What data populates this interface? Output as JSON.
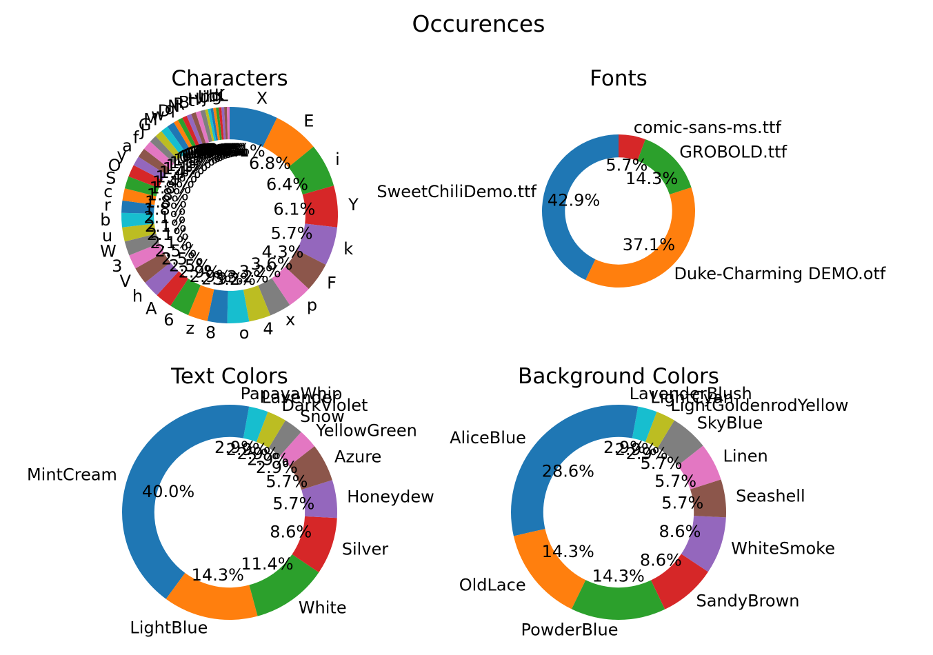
{
  "figure": {
    "title": "Occurences"
  },
  "chart_data": [
    {
      "type": "pie",
      "title": "Characters",
      "donut": true,
      "start_angle_deg": 90,
      "counterclock": false,
      "labels": [
        "X",
        "E",
        "i",
        "Y",
        "k",
        "F",
        "p",
        "x",
        "4",
        "o",
        "8",
        "z",
        "6",
        "A",
        "h",
        "V",
        "3",
        "W",
        "u",
        "b",
        "r",
        "c",
        "S",
        "O",
        "y",
        "a",
        "f",
        "J",
        "G",
        "M",
        "w",
        "D",
        "q",
        "N",
        "R",
        "B",
        "t",
        "H",
        "v",
        "j",
        "U",
        "l",
        "m",
        "d",
        "g",
        "K",
        "L"
      ],
      "values": [
        7.1,
        6.8,
        6.4,
        6.1,
        5.7,
        4.3,
        3.6,
        3.2,
        3.2,
        3.2,
        2.9,
        2.9,
        2.9,
        2.5,
        2.5,
        2.5,
        2.1,
        2.1,
        2.1,
        2.1,
        1.8,
        1.8,
        1.8,
        1.8,
        1.4,
        1.4,
        1.4,
        1.1,
        1.1,
        1.1,
        1.1,
        0.7,
        0.7,
        0.7,
        0.7,
        0.7,
        0.7,
        0.7,
        0.4,
        0.4,
        0.4,
        0.4,
        0.4,
        0.4,
        0.4,
        0.4,
        0.4
      ],
      "percent_labels": [
        "7.1%",
        "6.8%",
        "6.4%",
        "6.1%",
        "5.7%",
        "4.3%",
        "3.6%",
        "3.2%",
        "3.2%",
        "3.2%",
        "2.9%",
        "2.9%",
        "2.9%",
        "2.5%",
        "2.5%",
        "2.5%",
        "2.1%",
        "2.1%",
        "2.1%",
        "2.1%",
        "1.8%",
        "1.8%",
        "1.8%",
        "1.8%",
        "1.4%",
        "1.4%",
        "1.4%",
        "1.1%",
        "1.1%",
        "1.1%",
        "1.1%",
        "0.7%",
        "0.7%",
        "0.7%",
        "0.7%",
        "0.7%",
        "0.7%",
        "0.7%",
        "0.4%",
        "0.4%",
        "0.4%",
        "0.4%",
        "0.4%",
        "0.4%",
        "0.4%",
        "0.4%",
        "0.4%"
      ]
    },
    {
      "type": "pie",
      "title": "Fonts",
      "donut": true,
      "start_angle_deg": 90,
      "counterclock": true,
      "labels": [
        "SweetChiliDemo.ttf",
        "Duke-Charming DEMO.otf",
        "GROBOLD.ttf",
        "comic-sans-ms.ttf"
      ],
      "values": [
        42.9,
        37.1,
        14.3,
        5.7
      ],
      "percent_labels": [
        "42.9%",
        "37.1%",
        "14.3%",
        "5.7%"
      ]
    },
    {
      "type": "pie",
      "title": "Text Colors",
      "donut": true,
      "start_angle_deg": 90,
      "counterclock": true,
      "labels": [
        "MintCream",
        "LightBlue",
        "White",
        "Silver",
        "Honeydew",
        "Azure",
        "YellowGreen",
        "Snow",
        "DarkViolet",
        "Lavender",
        "PapayaWhip"
      ],
      "values": [
        40.0,
        14.3,
        11.4,
        8.6,
        5.7,
        5.7,
        2.9,
        2.9,
        2.9,
        2.9,
        2.9
      ],
      "percent_labels": [
        "40.0%",
        "14.3%",
        "11.4%",
        "8.6%",
        "5.7%",
        "5.7%",
        "2.9%",
        "2.9%",
        "2.9%",
        "2.9%",
        "2.9%"
      ]
    },
    {
      "type": "pie",
      "title": "Background Colors",
      "donut": true,
      "start_angle_deg": 90,
      "counterclock": true,
      "labels": [
        "AliceBlue",
        "OldLace",
        "PowderBlue",
        "SandyBrown",
        "WhiteSmoke",
        "Seashell",
        "Linen",
        "SkyBlue",
        "LightGoldenrodYellow",
        "LightCyan",
        "LavenderBlush"
      ],
      "values": [
        28.6,
        14.3,
        14.3,
        8.6,
        8.6,
        5.7,
        5.7,
        5.7,
        2.9,
        2.9,
        2.9
      ],
      "percent_labels": [
        "28.6%",
        "14.3%",
        "14.3%",
        "8.6%",
        "8.6%",
        "5.7%",
        "5.7%",
        "5.7%",
        "2.9%",
        "2.9%",
        "2.9%"
      ]
    }
  ],
  "palette": [
    "#1f77b4",
    "#ff7f0e",
    "#2ca02c",
    "#d62728",
    "#9467bd",
    "#8c564b",
    "#e377c2",
    "#7f7f7f",
    "#bcbd22",
    "#17becf"
  ]
}
